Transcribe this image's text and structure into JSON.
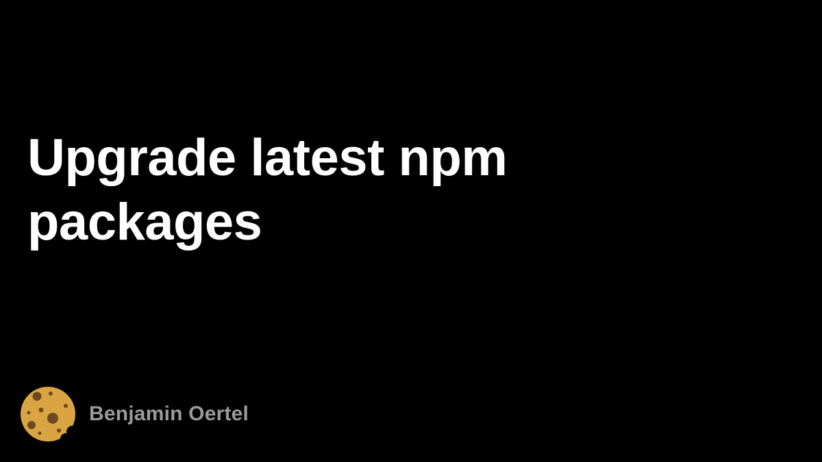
{
  "post": {
    "title": "Upgrade latest npm packages"
  },
  "author": {
    "name": "Benjamin Oertel",
    "avatar_icon": "cookie-icon"
  },
  "colors": {
    "background": "#000000",
    "title": "#ffffff",
    "author_name": "#9b9b9b",
    "cookie": "#d9a441",
    "cookie_chips": "#6b4a1f"
  }
}
